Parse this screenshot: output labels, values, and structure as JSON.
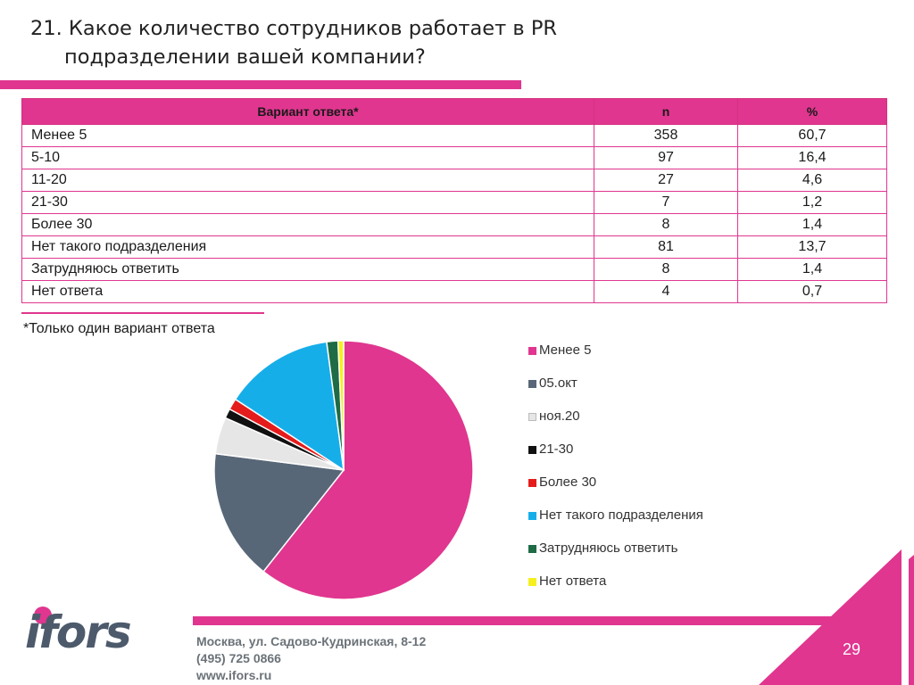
{
  "title": {
    "line1": "21. Какое количество сотрудников работает в PR",
    "line2": "подразделении вашей компании?"
  },
  "table": {
    "headers": [
      "Вариант ответа*",
      "n",
      "%"
    ],
    "rows": [
      [
        "Менее 5",
        "358",
        "60,7"
      ],
      [
        "5-10",
        "97",
        "16,4"
      ],
      [
        "11-20",
        "27",
        "4,6"
      ],
      [
        "21-30",
        "7",
        "1,2"
      ],
      [
        "Более 30",
        "8",
        "1,4"
      ],
      [
        "Нет такого подразделения",
        "81",
        "13,7"
      ],
      [
        "Затрудняюсь ответить",
        "8",
        "1,4"
      ],
      [
        "Нет ответа",
        "4",
        "0,7"
      ]
    ]
  },
  "note": "*Только один вариант ответа",
  "chart_data": {
    "type": "pie",
    "legend_position": "right",
    "labels": [
      "Менее 5",
      "05.окт",
      "ноя.20",
      "21-30",
      "Более 30",
      "Нет такого подразделения",
      "Затрудняюсь ответить",
      "Нет ответа"
    ],
    "values": [
      60.7,
      16.4,
      4.6,
      1.2,
      1.4,
      13.7,
      1.4,
      0.7
    ],
    "colors": [
      "#e0368f",
      "#586778",
      "#e6e6e6",
      "#111111",
      "#e51c1c",
      "#16aee9",
      "#1e6b45",
      "#f5f01e"
    ]
  },
  "footer": {
    "logo": "ifors",
    "address": "Москва, ул. Садово-Кудринская, 8-12",
    "phone": "(495) 725 0866",
    "website": "www.ifors.ru"
  },
  "page_number": "29",
  "colors": {
    "accent": "#e0368f",
    "logo_gray": "#4d5a6b"
  }
}
